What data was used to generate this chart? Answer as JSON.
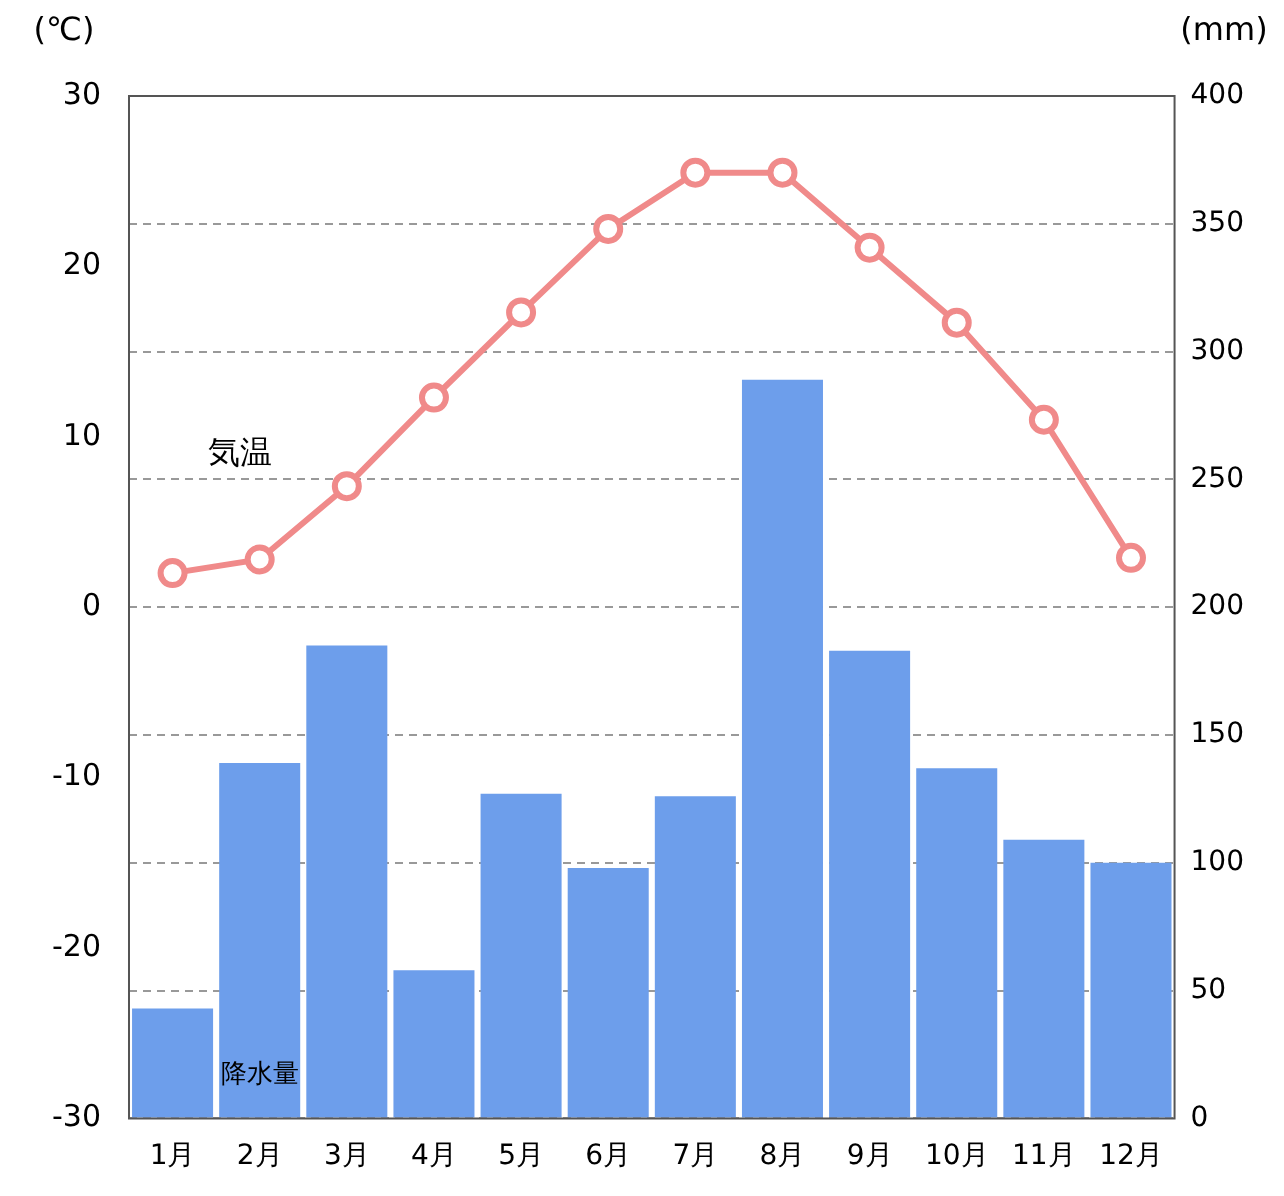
{
  "chart_data": {
    "type": "bar",
    "ylabel": "(℃)",
    "y2label": "(mm)",
    "categories": [
      "1月",
      "2月",
      "3月",
      "4月",
      "5月",
      "6月",
      "7月",
      "8月",
      "9月",
      "10月",
      "11月",
      "12月"
    ],
    "series": [
      {
        "name": "気温",
        "type": "line",
        "color": "#f08a8a",
        "values": [
          2.0,
          2.8,
          7.1,
          12.3,
          17.3,
          22.2,
          25.5,
          25.5,
          21.1,
          16.7,
          11.0,
          2.9
        ]
      },
      {
        "name": "降水量",
        "axis": "y2",
        "color": "#6d9eeb",
        "values": [
          43,
          139,
          185,
          58,
          127,
          98,
          126,
          289,
          183,
          137,
          109,
          100
        ]
      }
    ],
    "ylim": [
      -30,
      30
    ],
    "yticks": [
      -30,
      -20,
      -10,
      0,
      10,
      20,
      30
    ],
    "y2lim": [
      0,
      400
    ],
    "y2ticks": [
      0,
      50,
      100,
      150,
      200,
      250,
      300,
      350,
      400
    ],
    "grid": "y2",
    "legend": false,
    "marker": "circle",
    "line_style": "solid"
  }
}
